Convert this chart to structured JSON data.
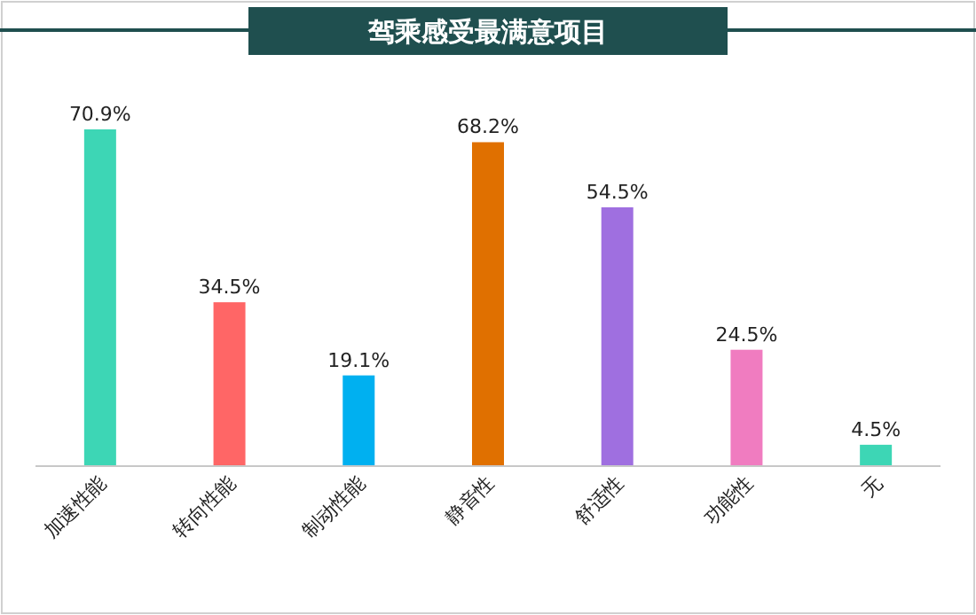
{
  "chart_data": {
    "type": "bar",
    "title": "驾乘感受最满意项目",
    "categories": [
      "加速性能",
      "转向性能",
      "制动性能",
      "静音性",
      "舒适性",
      "功能性",
      "无"
    ],
    "values": [
      70.9,
      34.5,
      19.1,
      68.2,
      54.5,
      24.5,
      4.5
    ],
    "value_labels": [
      "70.9%",
      "34.5%",
      "19.1%",
      "68.2%",
      "54.5%",
      "24.5%",
      "4.5%"
    ],
    "colors": [
      "#3dd6b5",
      "#ff6666",
      "#00b0f0",
      "#e07000",
      "#9f6fe0",
      "#f07cc0",
      "#3dd6b5"
    ]
  }
}
